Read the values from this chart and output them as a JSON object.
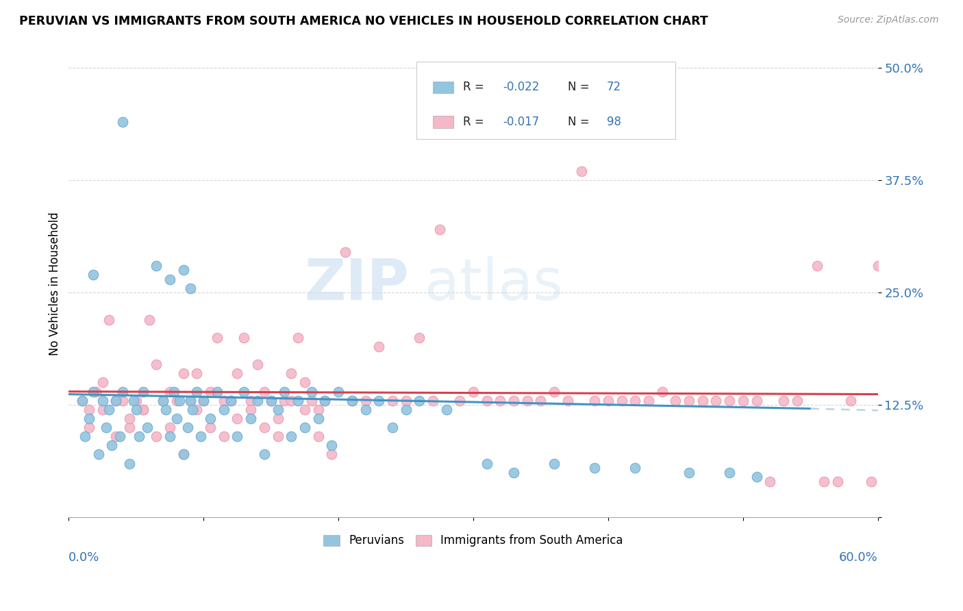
{
  "title": "PERUVIAN VS IMMIGRANTS FROM SOUTH AMERICA NO VEHICLES IN HOUSEHOLD CORRELATION CHART",
  "source": "Source: ZipAtlas.com",
  "ylabel": "No Vehicles in Household",
  "xlim": [
    0.0,
    0.6
  ],
  "ylim": [
    0.0,
    0.52
  ],
  "yticks": [
    0.0,
    0.125,
    0.25,
    0.375,
    0.5
  ],
  "ytick_labels": [
    "",
    "12.5%",
    "25.0%",
    "37.5%",
    "50.0%"
  ],
  "color_blue": "#92c5de",
  "color_pink": "#f4b8c8",
  "trend_blue": "#4393c3",
  "trend_pink": "#d6404e",
  "trend_dashed_color": "#b8d4e8",
  "blue_seed": 10,
  "pink_seed": 20,
  "watermark_zip_color": "#c8dff0",
  "watermark_atlas_color": "#c8dff0"
}
